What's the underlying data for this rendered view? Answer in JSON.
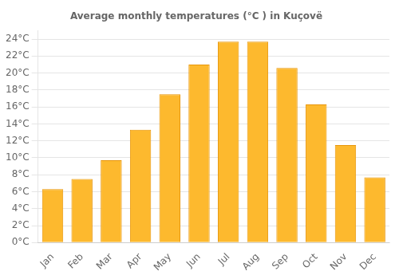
{
  "chart_data": {
    "type": "bar",
    "title": "Average monthly temperatures (°C ) in Kuçovë",
    "categories": [
      "Jan",
      "Feb",
      "Mar",
      "Apr",
      "May",
      "Jun",
      "Jul",
      "Aug",
      "Sep",
      "Oct",
      "Nov",
      "Dec"
    ],
    "values": [
      6.3,
      7.5,
      9.7,
      13.3,
      17.5,
      21.0,
      23.7,
      23.7,
      20.6,
      16.3,
      11.5,
      7.7
    ],
    "color": "#FDB92E",
    "ylim": [
      0,
      25
    ],
    "yticks": [
      {
        "value": 0,
        "label": "0°C"
      },
      {
        "value": 2,
        "label": "2°C"
      },
      {
        "value": 4,
        "label": "4°C"
      },
      {
        "value": 6,
        "label": "6°C"
      },
      {
        "value": 8,
        "label": "8°C"
      },
      {
        "value": 10,
        "label": "10°C"
      },
      {
        "value": 12,
        "label": "12°C"
      },
      {
        "value": 14,
        "label": "14°C"
      },
      {
        "value": 16,
        "label": "16°C"
      },
      {
        "value": 18,
        "label": "18°C"
      },
      {
        "value": 20,
        "label": "20°C"
      },
      {
        "value": 22,
        "label": "22°C"
      },
      {
        "value": 24,
        "label": "24°C"
      }
    ],
    "grid": true
  }
}
